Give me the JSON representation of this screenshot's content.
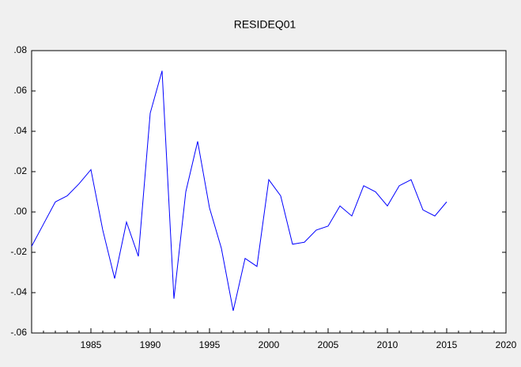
{
  "chart_data": {
    "type": "line",
    "title": "RESIDEQ01",
    "x": [
      1980,
      1981,
      1982,
      1983,
      1984,
      1985,
      1986,
      1987,
      1988,
      1989,
      1990,
      1991,
      1992,
      1993,
      1994,
      1995,
      1996,
      1997,
      1998,
      1999,
      2000,
      2001,
      2002,
      2003,
      2004,
      2005,
      2006,
      2007,
      2008,
      2009,
      2010,
      2011,
      2012,
      2013,
      2014,
      2015
    ],
    "series": [
      {
        "name": "RESIDEQ01",
        "color": "#0000ff",
        "values": [
          -0.017,
          -0.006,
          0.005,
          0.008,
          0.014,
          0.021,
          -0.009,
          -0.033,
          -0.005,
          -0.022,
          0.049,
          0.07,
          -0.043,
          0.01,
          0.035,
          0.002,
          -0.018,
          -0.049,
          -0.023,
          -0.027,
          0.016,
          0.008,
          -0.016,
          -0.015,
          -0.009,
          -0.007,
          0.003,
          -0.002,
          0.013,
          0.01,
          0.003,
          0.013,
          0.016,
          0.001,
          -0.002,
          0.005
        ]
      }
    ],
    "xlim": [
      1980,
      2020
    ],
    "xticks": [
      1985,
      1990,
      1995,
      2000,
      2005,
      2010,
      2015,
      2020
    ],
    "ylim": [
      -0.06,
      0.08
    ],
    "yticks": [
      {
        "value": -0.06,
        "label": "-.06"
      },
      {
        "value": -0.04,
        "label": "-.04"
      },
      {
        "value": -0.02,
        "label": "-.02"
      },
      {
        "value": 0,
        "label": ".00"
      },
      {
        "value": 0.02,
        "label": ".02"
      },
      {
        "value": 0.04,
        "label": ".04"
      },
      {
        "value": 0.06,
        "label": ".06"
      },
      {
        "value": 0.08,
        "label": ".08"
      }
    ]
  }
}
